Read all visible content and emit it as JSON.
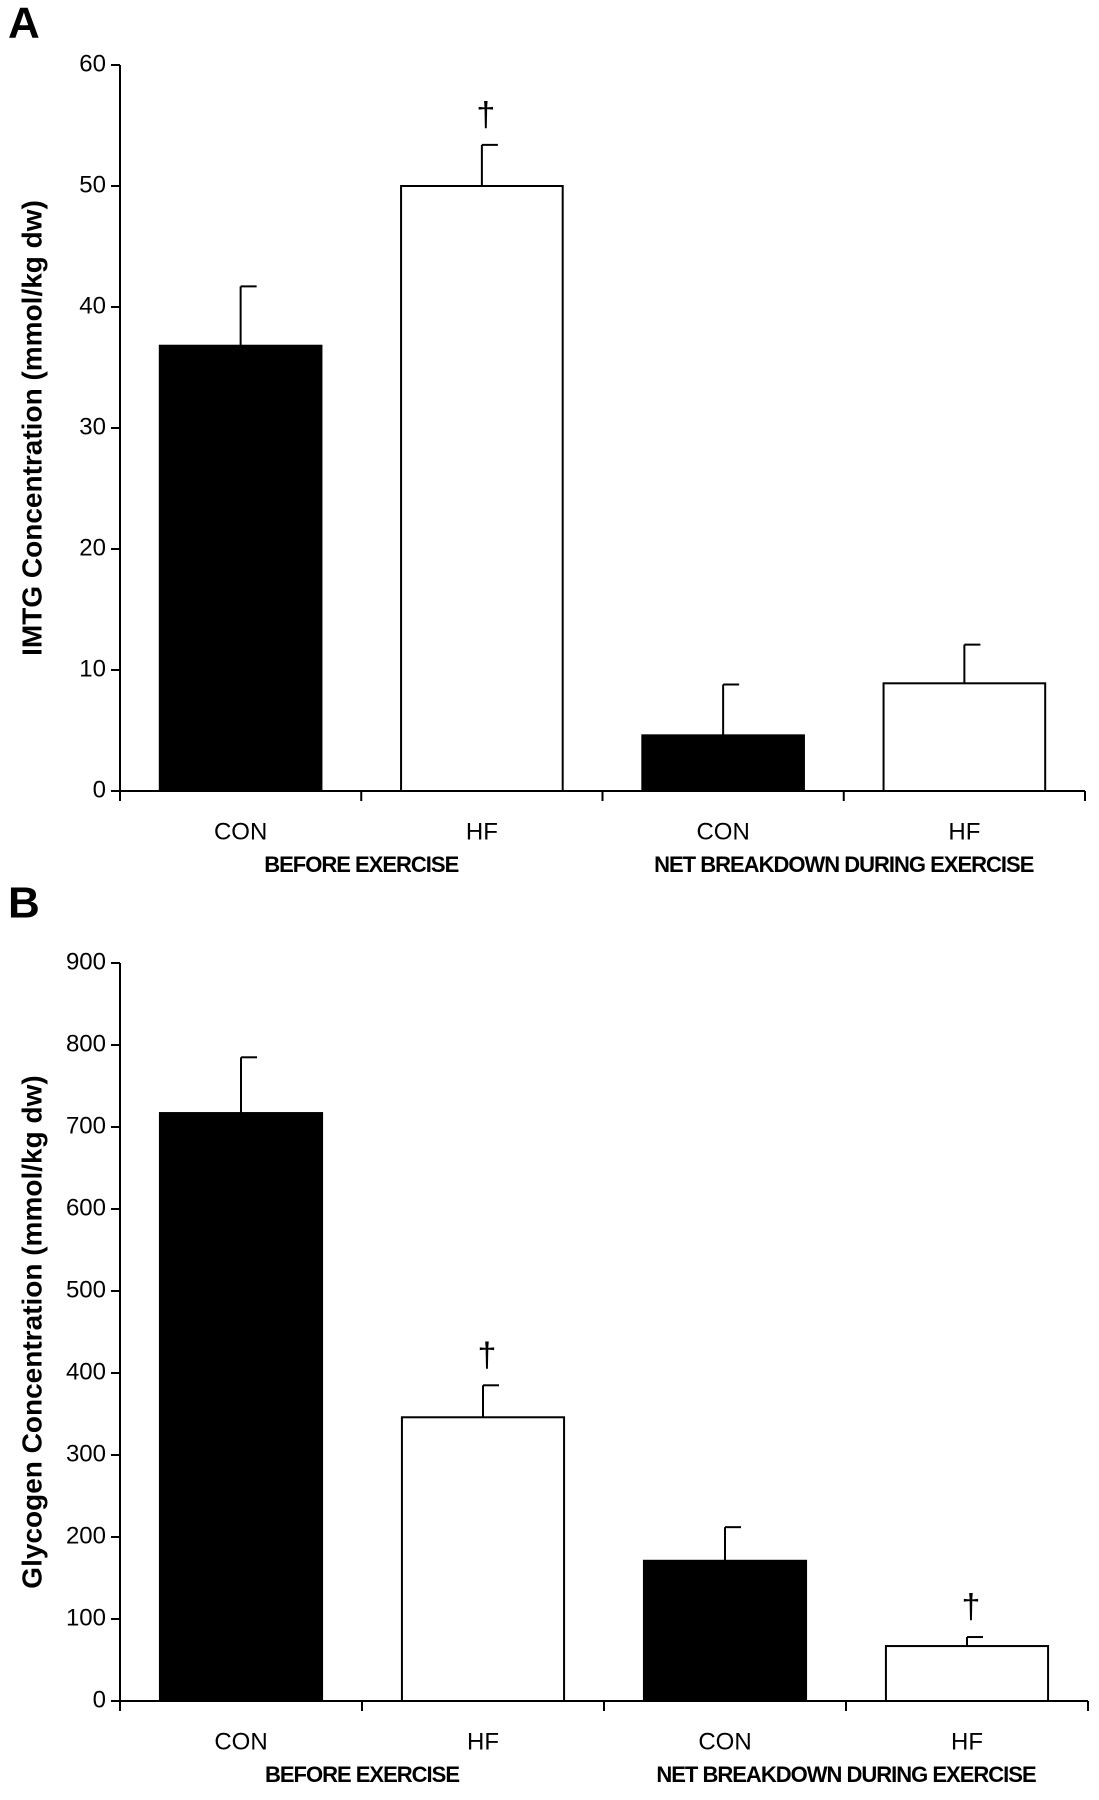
{
  "chart_data": [
    {
      "type": "bar",
      "panel": "A",
      "ylabel": "IMTG Concentration (mmol/kg dw)",
      "categories": [
        "CON",
        "HF",
        "CON",
        "HF"
      ],
      "groups": [
        "BEFORE EXERCISE",
        "NET BREAKDOWN DURING EXERCISE"
      ],
      "values": [
        36.8,
        50,
        4.6,
        8.9
      ],
      "errors": [
        4.9,
        3.4,
        4.2,
        3.2
      ],
      "colors": [
        "#000000",
        "#ffffff",
        "#000000",
        "#ffffff"
      ],
      "annotations": [
        null,
        "†",
        null,
        null
      ],
      "ylim": [
        0,
        60
      ],
      "yticks": [
        0,
        10,
        20,
        30,
        40,
        50,
        60
      ]
    },
    {
      "type": "bar",
      "panel": "B",
      "ylabel": "Glycogen Concentration (mmol/kg dw)",
      "categories": [
        "CON",
        "HF",
        "CON",
        "HF"
      ],
      "groups": [
        "BEFORE EXERCISE",
        "NET BREAKDOWN DURING EXERCISE"
      ],
      "values": [
        717,
        346,
        171,
        67
      ],
      "errors": [
        68,
        39,
        41,
        11
      ],
      "colors": [
        "#000000",
        "#ffffff",
        "#000000",
        "#ffffff"
      ],
      "annotations": [
        null,
        "†",
        null,
        "†"
      ],
      "ylim": [
        0,
        900
      ],
      "yticks": [
        0,
        100,
        200,
        300,
        400,
        500,
        600,
        700,
        800,
        900
      ]
    }
  ]
}
